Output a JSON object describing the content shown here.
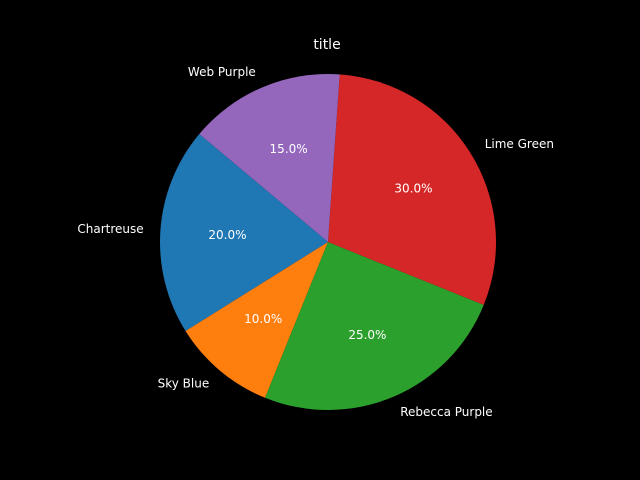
{
  "chart_data": {
    "type": "pie",
    "title": "title",
    "labels": [
      "Chartreuse",
      "Sky Blue",
      "Rebecca Purple",
      "Lime Green",
      "Web Purple"
    ],
    "values": [
      20.0,
      10.0,
      25.0,
      30.0,
      15.0
    ],
    "percent_labels": [
      "20.0%",
      "10.0%",
      "25.0%",
      "30.0%",
      "15.0%"
    ],
    "colors": [
      "#1f77b4",
      "#ff7f0e",
      "#2ca02c",
      "#d62728",
      "#9467bd"
    ],
    "start_angle_deg": 140,
    "direction": "counterclockwise"
  },
  "background_color": "#000000",
  "text_color": "#ffffff"
}
